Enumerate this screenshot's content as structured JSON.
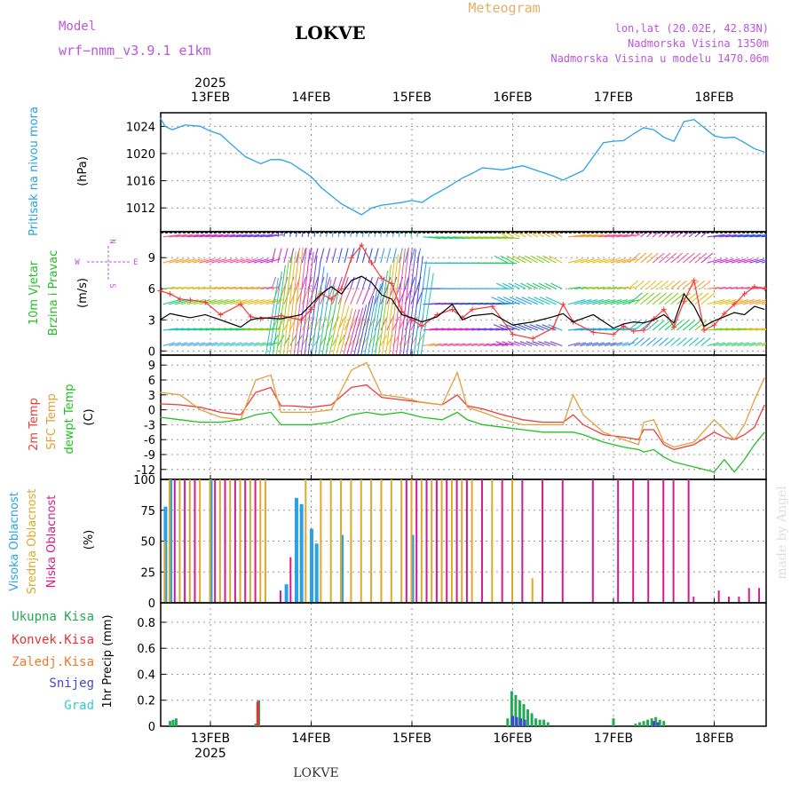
{
  "header": {
    "model_label": "Model",
    "model_name": "wrf−nmm_v3.9.1  e1km",
    "location": "LOKVE",
    "meteogram_label": "Meteogram",
    "coords": "lon,lat (20.02E, 42.83N)",
    "elevation": "Nadmorska Visina 1350m",
    "model_elevation": "Nadmorska Visina u modelu 1470.06m"
  },
  "footer": {
    "location": "LOKVE",
    "watermark": "made by Angel"
  },
  "time_axis": {
    "year": "2025",
    "days": [
      "13FEB",
      "14FEB",
      "15FEB",
      "16FEB",
      "17FEB",
      "18FEB"
    ],
    "start": 0.0,
    "end": 6.0
  },
  "colors": {
    "pressure": "#29a3e6",
    "temp2m": "#ef3b3b",
    "sfc_temp": "#e3a03a",
    "dewpoint": "#22c022",
    "high_cloud": "#29a3e6",
    "mid_cloud": "#dcaa2a",
    "low_cloud": "#d31c8c",
    "total_precip": "#22aa55",
    "conv_precip": "#e53333",
    "frozen_precip": "#f07a2a",
    "snow": "#4444dd",
    "graupel": "#33cccc",
    "title": "#000000",
    "purple": "#bb55dd"
  },
  "panels": {
    "pressure": {
      "label": "Pritisak na nivou mora",
      "unit": "(hPa)"
    },
    "wind": {
      "label1": "10m Vjetar",
      "label2": "Brzina i Pravac",
      "unit": "(m/s)",
      "compass": {
        "n": "N",
        "e": "E",
        "s": "S",
        "w": "W"
      }
    },
    "temp": {
      "label1": "2m Temp",
      "label2": "SFC Temp",
      "label3": "dewpt Temp",
      "unit": "(C)"
    },
    "cloud": {
      "label1": "Visoka Oblacnost",
      "label2": "Srednja Oblacnost",
      "label3": "Niska Oblacnost",
      "unit": "(%)"
    },
    "precip": {
      "label": "1hr Precip (mm)",
      "legend": [
        "Ukupna Kisa",
        "Konvek.Kisa",
        "Zaledj.Kisa",
        "Snijeg",
        "Grad"
      ]
    }
  },
  "chart_data": [
    {
      "type": "line",
      "name": "Pritisak na nivou mora",
      "ylabel": "(hPa)",
      "ylim": [
        1008.5,
        1026
      ],
      "yticks": [
        1012,
        1016,
        1020,
        1024
      ],
      "grid": true,
      "x": [
        0.0,
        0.05,
        0.12,
        0.25,
        0.4,
        0.5,
        0.6,
        0.75,
        0.85,
        1.0,
        1.1,
        1.2,
        1.3,
        1.4,
        1.5,
        1.6,
        1.8,
        2.0,
        2.1,
        2.2,
        2.3,
        2.4,
        2.5,
        2.6,
        2.7,
        2.85,
        3.0,
        3.1,
        3.2,
        3.4,
        3.6,
        3.8,
        3.9,
        4.0,
        4.2,
        4.4,
        4.5,
        4.6,
        4.7,
        4.8,
        4.9,
        5.0,
        5.1,
        5.2,
        5.3,
        5.45,
        5.5,
        5.6,
        5.7,
        5.8,
        5.9,
        6.0
      ],
      "y": [
        1025.3,
        1024.0,
        1023.5,
        1024.2,
        1024.0,
        1023.3,
        1022.8,
        1020.8,
        1019.5,
        1018.5,
        1019.1,
        1019.1,
        1018.6,
        1017.6,
        1016.6,
        1015.0,
        1012.6,
        1011.0,
        1012.0,
        1012.4,
        1012.6,
        1012.8,
        1013.1,
        1012.8,
        1013.8,
        1015.0,
        1016.4,
        1017.1,
        1017.9,
        1017.6,
        1018.2,
        1017.2,
        1016.7,
        1016.1,
        1017.5,
        1021.6,
        1021.8,
        1021.9,
        1022.9,
        1023.8,
        1023.5,
        1022.4,
        1021.8,
        1024.7,
        1025.0,
        1023.2,
        1022.6,
        1022.3,
        1022.4,
        1021.6,
        1020.7,
        1020.2
      ],
      "series": [
        {
          "values_key": "y",
          "color": "#29a3e6"
        }
      ]
    },
    {
      "type": "line",
      "name": "10m Vjetar Brzina i Pravac",
      "ylabel": "(m/s)",
      "ylim": [
        -0.4,
        11.5
      ],
      "yticks": [
        0,
        3,
        6,
        9
      ],
      "grid": true,
      "x": [
        0.0,
        0.1,
        0.2,
        0.3,
        0.45,
        0.6,
        0.8,
        0.9,
        1.0,
        1.2,
        1.4,
        1.5,
        1.6,
        1.7,
        1.8,
        1.9,
        2.0,
        2.1,
        2.2,
        2.3,
        2.4,
        2.5,
        2.6,
        2.75,
        2.9,
        3.0,
        3.1,
        3.3,
        3.5,
        3.7,
        3.9,
        4.0,
        4.1,
        4.3,
        4.5,
        4.6,
        4.7,
        4.8,
        4.9,
        5.0,
        5.1,
        5.2,
        5.3,
        5.4,
        5.5,
        5.6,
        5.7,
        5.8,
        5.9,
        6.0
      ],
      "series": [
        {
          "name": "speed",
          "color": "#000000",
          "values": [
            3.0,
            3.6,
            3.4,
            3.2,
            3.5,
            3.0,
            2.3,
            3.0,
            3.2,
            3.1,
            3.5,
            4.5,
            5.5,
            6.2,
            5.5,
            6.8,
            7.2,
            6.6,
            5.4,
            5.0,
            3.5,
            3.2,
            2.8,
            3.3,
            4.5,
            3.0,
            3.4,
            3.6,
            2.5,
            2.8,
            3.3,
            3.6,
            2.8,
            3.5,
            2.2,
            2.6,
            2.8,
            2.7,
            3.0,
            3.5,
            2.7,
            5.5,
            4.3,
            2.4,
            2.9,
            3.3,
            3.7,
            3.5,
            4.3,
            4.0
          ]
        },
        {
          "name": "gust",
          "color": "#ef3b3b",
          "values": [
            5.8,
            5.5,
            5.0,
            4.9,
            4.7,
            3.5,
            4.5,
            3.3,
            3.1,
            3.4,
            3.0,
            4.0,
            5.5,
            5.0,
            6.0,
            9.0,
            10.2,
            8.5,
            7.0,
            6.5,
            3.8,
            3.0,
            2.4,
            3.5,
            4.0,
            3.2,
            4.0,
            4.3,
            1.6,
            1.2,
            2.2,
            4.5,
            2.8,
            1.8,
            1.6,
            2.4,
            1.9,
            2.0,
            3.1,
            4.0,
            2.3,
            4.8,
            6.8,
            2.0,
            2.5,
            3.6,
            4.5,
            5.5,
            6.2,
            6.0
          ]
        }
      ],
      "note": "direction shown by coloured wind arrows at levels 0.5, 2, 4.5, 6, 8.5, 11 m/s"
    },
    {
      "type": "line",
      "name": "Temperatura",
      "ylabel": "(C)",
      "ylim": [
        -14,
        11
      ],
      "yticks": [
        -12,
        -9,
        -6,
        -3,
        0,
        3,
        6,
        9
      ],
      "grid": true,
      "x": [
        0.0,
        0.2,
        0.4,
        0.6,
        0.8,
        0.95,
        1.1,
        1.2,
        1.3,
        1.5,
        1.7,
        1.9,
        2.05,
        2.2,
        2.4,
        2.6,
        2.8,
        2.95,
        3.05,
        3.2,
        3.4,
        3.6,
        3.8,
        4.0,
        4.1,
        4.2,
        4.4,
        4.6,
        4.75,
        4.8,
        4.9,
        5.0,
        5.1,
        5.3,
        5.5,
        5.6,
        5.7,
        5.8,
        5.9,
        6.0
      ],
      "series": [
        {
          "name": "2m Temp",
          "color": "#ef3b3b",
          "values": [
            1.2,
            1.0,
            0.5,
            -0.5,
            -1.0,
            3.5,
            4.5,
            0.8,
            0.8,
            0.5,
            1.0,
            4.5,
            5.0,
            2.5,
            2.0,
            1.5,
            1.0,
            3.0,
            0.8,
            0.2,
            -1.0,
            -2.0,
            -2.5,
            -2.5,
            -1.0,
            -3.0,
            -5.0,
            -5.5,
            -6.0,
            -4.0,
            -4.0,
            -7.0,
            -8.0,
            -7.0,
            -4.5,
            -5.5,
            -6.0,
            -5.0,
            -3.5,
            1.0
          ]
        },
        {
          "name": "SFC Temp",
          "color": "#e3a03a",
          "values": [
            3.5,
            3.0,
            0.0,
            -1.5,
            -2.0,
            6.0,
            7.0,
            -0.5,
            -0.5,
            -0.5,
            0.0,
            8.0,
            9.5,
            3.0,
            2.5,
            1.5,
            1.0,
            7.5,
            0.5,
            -0.5,
            -2.0,
            -3.0,
            -3.0,
            -3.0,
            3.0,
            -1.0,
            -4.5,
            -6.0,
            -7.0,
            -2.5,
            -2.0,
            -6.5,
            -7.5,
            -6.5,
            -2.0,
            -4.0,
            -6.0,
            -3.0,
            2.0,
            6.5
          ]
        },
        {
          "name": "dewpt Temp",
          "color": "#22c022",
          "values": [
            -1.5,
            -2.0,
            -2.5,
            -2.5,
            -2.0,
            -1.0,
            -0.5,
            -3.0,
            -3.0,
            -3.0,
            -2.5,
            -1.0,
            -0.5,
            -1.0,
            -0.5,
            -1.5,
            -2.0,
            -0.5,
            -2.0,
            -3.0,
            -3.5,
            -4.0,
            -4.5,
            -4.5,
            -4.5,
            -5.0,
            -6.5,
            -7.5,
            -8.0,
            -8.5,
            -8.0,
            -9.5,
            -10.5,
            -11.5,
            -12.5,
            -10.0,
            -12.5,
            -10.0,
            -7.0,
            -4.5
          ]
        }
      ]
    },
    {
      "type": "bar",
      "name": "Oblacnost",
      "ylabel": "(%)",
      "ylim": [
        0,
        100
      ],
      "yticks": [
        0,
        25,
        50,
        75,
        100
      ],
      "grid": true,
      "series": [
        {
          "name": "Visoka Oblacnost",
          "color": "#29a3e6",
          "x": [
            0.05,
            0.1,
            0.5,
            1.25,
            1.35,
            1.4,
            1.5,
            1.55,
            1.8,
            2.5
          ],
          "values": [
            78,
            100,
            100,
            15,
            85,
            80,
            60,
            48,
            55,
            55
          ]
        },
        {
          "name": "Srednja Oblacnost",
          "color": "#dcaa2a",
          "x": [
            0.05,
            0.1,
            0.2,
            0.3,
            0.4,
            0.5,
            0.6,
            0.7,
            0.8,
            0.9,
            1.0,
            1.05,
            1.45,
            1.6,
            1.7,
            1.8,
            1.9,
            2.0,
            2.1,
            2.2,
            2.3,
            2.4,
            2.5,
            2.6,
            2.7,
            2.8,
            2.9,
            3.0,
            3.1,
            3.3,
            3.5,
            3.7
          ],
          "values": [
            50,
            100,
            100,
            100,
            100,
            100,
            100,
            100,
            100,
            100,
            100,
            100,
            100,
            100,
            100,
            100,
            100,
            100,
            100,
            100,
            100,
            100,
            100,
            100,
            100,
            100,
            100,
            100,
            100,
            100,
            100,
            20
          ]
        },
        {
          "name": "Niska Oblacnost",
          "color": "#d31c8c",
          "x": [
            0.15,
            0.25,
            0.35,
            0.55,
            0.65,
            0.75,
            0.85,
            0.95,
            1.2,
            1.3,
            2.45,
            2.55,
            2.65,
            2.75,
            2.85,
            2.95,
            3.05,
            3.2,
            3.4,
            3.6,
            3.8,
            4.0,
            4.3,
            4.55,
            4.7,
            4.85,
            5.0,
            5.1,
            5.25,
            5.3,
            5.55,
            5.65,
            5.75,
            5.85,
            5.95
          ],
          "values": [
            100,
            100,
            100,
            100,
            100,
            100,
            100,
            100,
            10,
            37,
            100,
            100,
            100,
            100,
            100,
            100,
            100,
            100,
            100,
            100,
            100,
            100,
            100,
            100,
            100,
            100,
            100,
            100,
            100,
            5,
            10,
            5,
            5,
            12,
            12
          ]
        }
      ]
    },
    {
      "type": "bar",
      "name": "1hr Precip",
      "ylabel": "1hr Precip (mm)",
      "ylim": [
        0,
        0.95
      ],
      "yticks": [
        0,
        0.2,
        0.4,
        0.6,
        0.8
      ],
      "grid": true,
      "series": [
        {
          "name": "Ukupna Kisa",
          "color": "#22aa55",
          "x": [
            0.1,
            0.13,
            0.16,
            0.95,
            0.98,
            3.45,
            3.49,
            3.53,
            3.57,
            3.61,
            3.65,
            3.69,
            3.73,
            3.77,
            3.81,
            3.85,
            4.5,
            4.72,
            4.76,
            4.8,
            4.84,
            4.88,
            4.92,
            4.96,
            5.0
          ],
          "values": [
            0.04,
            0.05,
            0.06,
            0.02,
            0.2,
            0.06,
            0.27,
            0.24,
            0.2,
            0.17,
            0.13,
            0.1,
            0.06,
            0.05,
            0.05,
            0.03,
            0.06,
            0.02,
            0.03,
            0.04,
            0.05,
            0.06,
            0.07,
            0.05,
            0.04
          ]
        },
        {
          "name": "Konvek.Kisa",
          "color": "#e53333",
          "x": [
            0.97
          ],
          "values": [
            0.19
          ]
        },
        {
          "name": "Snijeg",
          "color": "#4444dd",
          "x": [
            3.5,
            3.54,
            3.58,
            3.62,
            4.9,
            4.94
          ],
          "values": [
            0.08,
            0.07,
            0.06,
            0.05,
            0.04,
            0.03
          ]
        }
      ]
    }
  ]
}
